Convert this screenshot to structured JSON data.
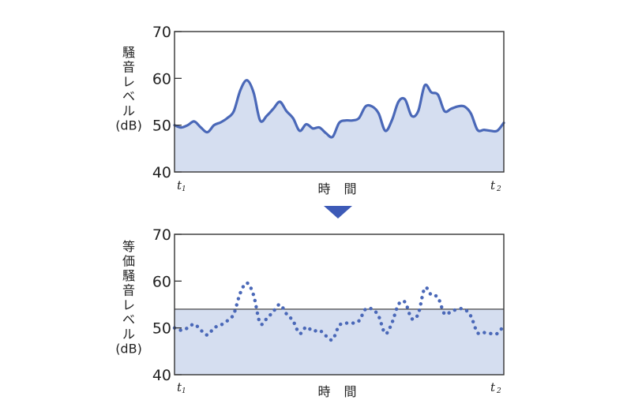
{
  "arrow_color": "#3d5ab7",
  "chart_data": [
    {
      "type": "area",
      "title": "",
      "ylabel": "騒音レベル(dB)",
      "ylabel_lines": [
        "騒",
        "音",
        "レ",
        "ベ",
        "ル",
        "(dB)"
      ],
      "xlabel": "時 間",
      "x_tick_labels": {
        "start": "t",
        "start_sub": "1",
        "end": "t",
        "end_sub": "2"
      },
      "ylim": [
        40,
        70
      ],
      "yticks": [
        "40",
        "50",
        "60",
        "70"
      ],
      "x": [
        0,
        0.02,
        0.04,
        0.06,
        0.08,
        0.1,
        0.12,
        0.14,
        0.16,
        0.18,
        0.2,
        0.22,
        0.24,
        0.26,
        0.28,
        0.3,
        0.32,
        0.34,
        0.36,
        0.38,
        0.4,
        0.42,
        0.44,
        0.46,
        0.48,
        0.5,
        0.52,
        0.54,
        0.56,
        0.58,
        0.6,
        0.62,
        0.64,
        0.66,
        0.68,
        0.7,
        0.72,
        0.74,
        0.76,
        0.78,
        0.8,
        0.82,
        0.84,
        0.86,
        0.88,
        0.9,
        0.92,
        0.94,
        0.96,
        0.98,
        1.0
      ],
      "values": [
        50.0,
        49.5,
        50.0,
        50.8,
        49.5,
        48.5,
        50.0,
        50.6,
        51.5,
        53.0,
        57.5,
        59.6,
        57.0,
        51.0,
        52.0,
        53.5,
        55.0,
        53.0,
        51.5,
        48.8,
        50.2,
        49.3,
        49.5,
        48.3,
        47.5,
        50.5,
        51.0,
        51.0,
        51.5,
        54.0,
        54.0,
        52.5,
        48.8,
        51.0,
        55.0,
        55.5,
        52.0,
        53.0,
        58.5,
        57.0,
        56.5,
        53.0,
        53.5,
        54.0,
        54.0,
        52.5,
        49.0,
        49.0,
        48.8,
        48.8,
        50.5
      ],
      "line_color": "#4a68b8",
      "fill_color": "#d5def0",
      "grid": false,
      "legend": "none"
    },
    {
      "type": "area",
      "title": "",
      "ylabel": "等価騒音レベル(dB)",
      "ylabel_lines": [
        "等",
        "価",
        "騒",
        "音",
        "レ",
        "ベ",
        "ル",
        "(dB)"
      ],
      "xlabel": "時 間",
      "x_tick_labels": {
        "start": "t",
        "start_sub": "1",
        "end": "t",
        "end_sub": "2"
      },
      "ylim": [
        40,
        70
      ],
      "yticks": [
        "40",
        "50",
        "60",
        "70"
      ],
      "x": [
        0,
        0.02,
        0.04,
        0.06,
        0.08,
        0.1,
        0.12,
        0.14,
        0.16,
        0.18,
        0.2,
        0.22,
        0.24,
        0.26,
        0.28,
        0.3,
        0.32,
        0.34,
        0.36,
        0.38,
        0.4,
        0.42,
        0.44,
        0.46,
        0.48,
        0.5,
        0.52,
        0.54,
        0.56,
        0.58,
        0.6,
        0.62,
        0.64,
        0.66,
        0.68,
        0.7,
        0.72,
        0.74,
        0.76,
        0.78,
        0.8,
        0.82,
        0.84,
        0.86,
        0.88,
        0.9,
        0.92,
        0.94,
        0.96,
        0.98,
        1.0
      ],
      "values": [
        50.0,
        49.5,
        50.0,
        50.8,
        49.5,
        48.5,
        50.0,
        50.6,
        51.5,
        53.0,
        57.5,
        59.6,
        57.0,
        51.0,
        52.0,
        53.5,
        55.0,
        53.0,
        51.5,
        48.8,
        50.2,
        49.3,
        49.5,
        48.3,
        47.5,
        50.5,
        51.0,
        51.0,
        51.5,
        54.0,
        54.0,
        52.5,
        48.8,
        51.0,
        55.0,
        55.5,
        52.0,
        53.0,
        58.5,
        57.0,
        56.5,
        53.0,
        53.5,
        54.0,
        54.0,
        52.5,
        49.0,
        49.0,
        48.8,
        48.8,
        50.5
      ],
      "equivalent_level": 54,
      "line_style": "dotted",
      "line_color": "#4a68b8",
      "fill_color": "#d5def0",
      "grid": false,
      "legend": "none"
    }
  ]
}
